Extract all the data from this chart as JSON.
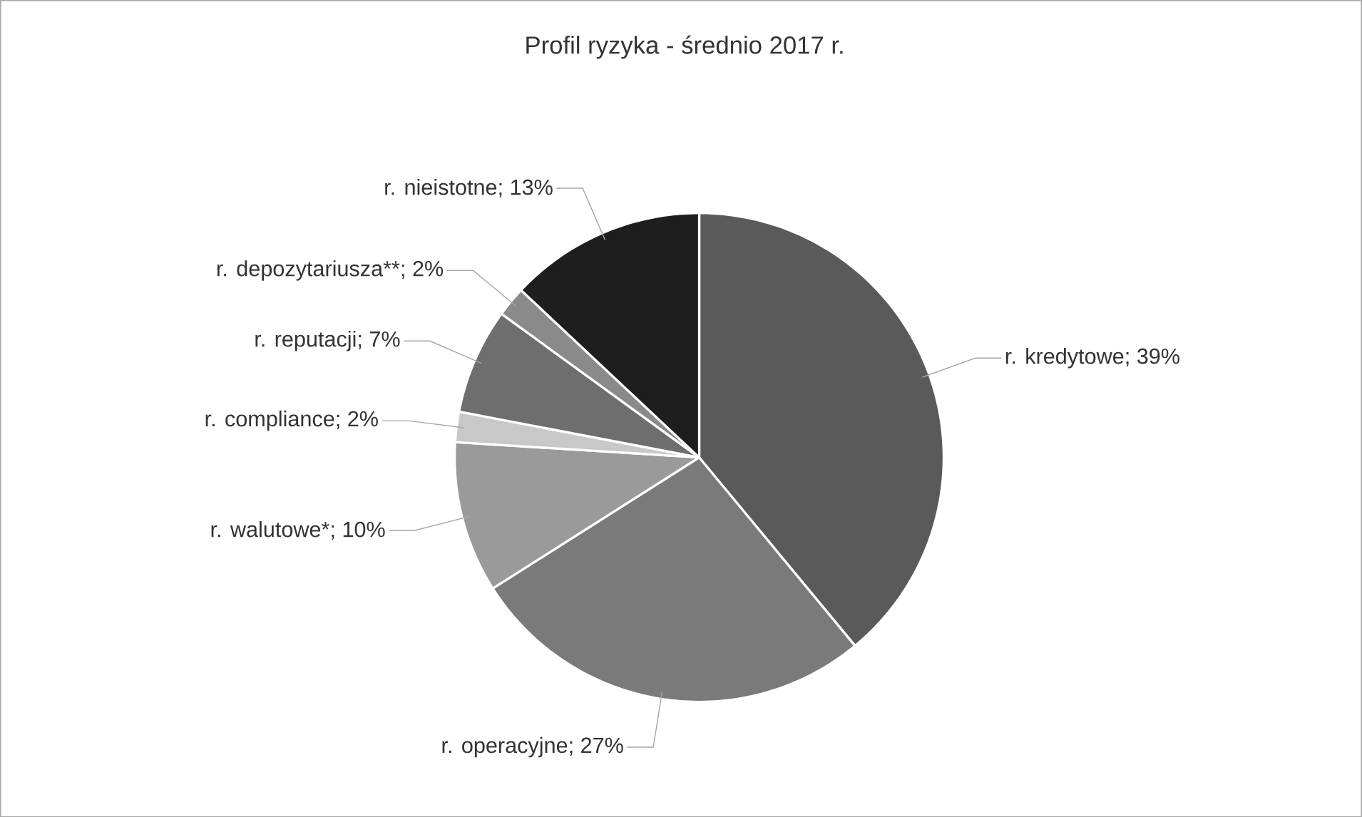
{
  "chart_data": {
    "type": "pie",
    "title": "Profil ryzyka - średnio 2017 r.",
    "categories": [
      "r. kredytowe",
      "r. operacyjne",
      "r. walutowe*",
      "r. compliance",
      "r. reputacji",
      "r. depozytariusza**",
      "r. nieistotne"
    ],
    "values": [
      39,
      27,
      10,
      2,
      7,
      2,
      13
    ],
    "value_labels": [
      "; 39%",
      "; 27%",
      "; 10%",
      "; 2%",
      "; 7%",
      "; 2%",
      "; 13%"
    ],
    "colors": [
      "#5a5a5a",
      "#7a7a7a",
      "#9a9a9a",
      "#c8c8c8",
      "#6e6e6e",
      "#8a8a8a",
      "#1e1e1e"
    ]
  }
}
